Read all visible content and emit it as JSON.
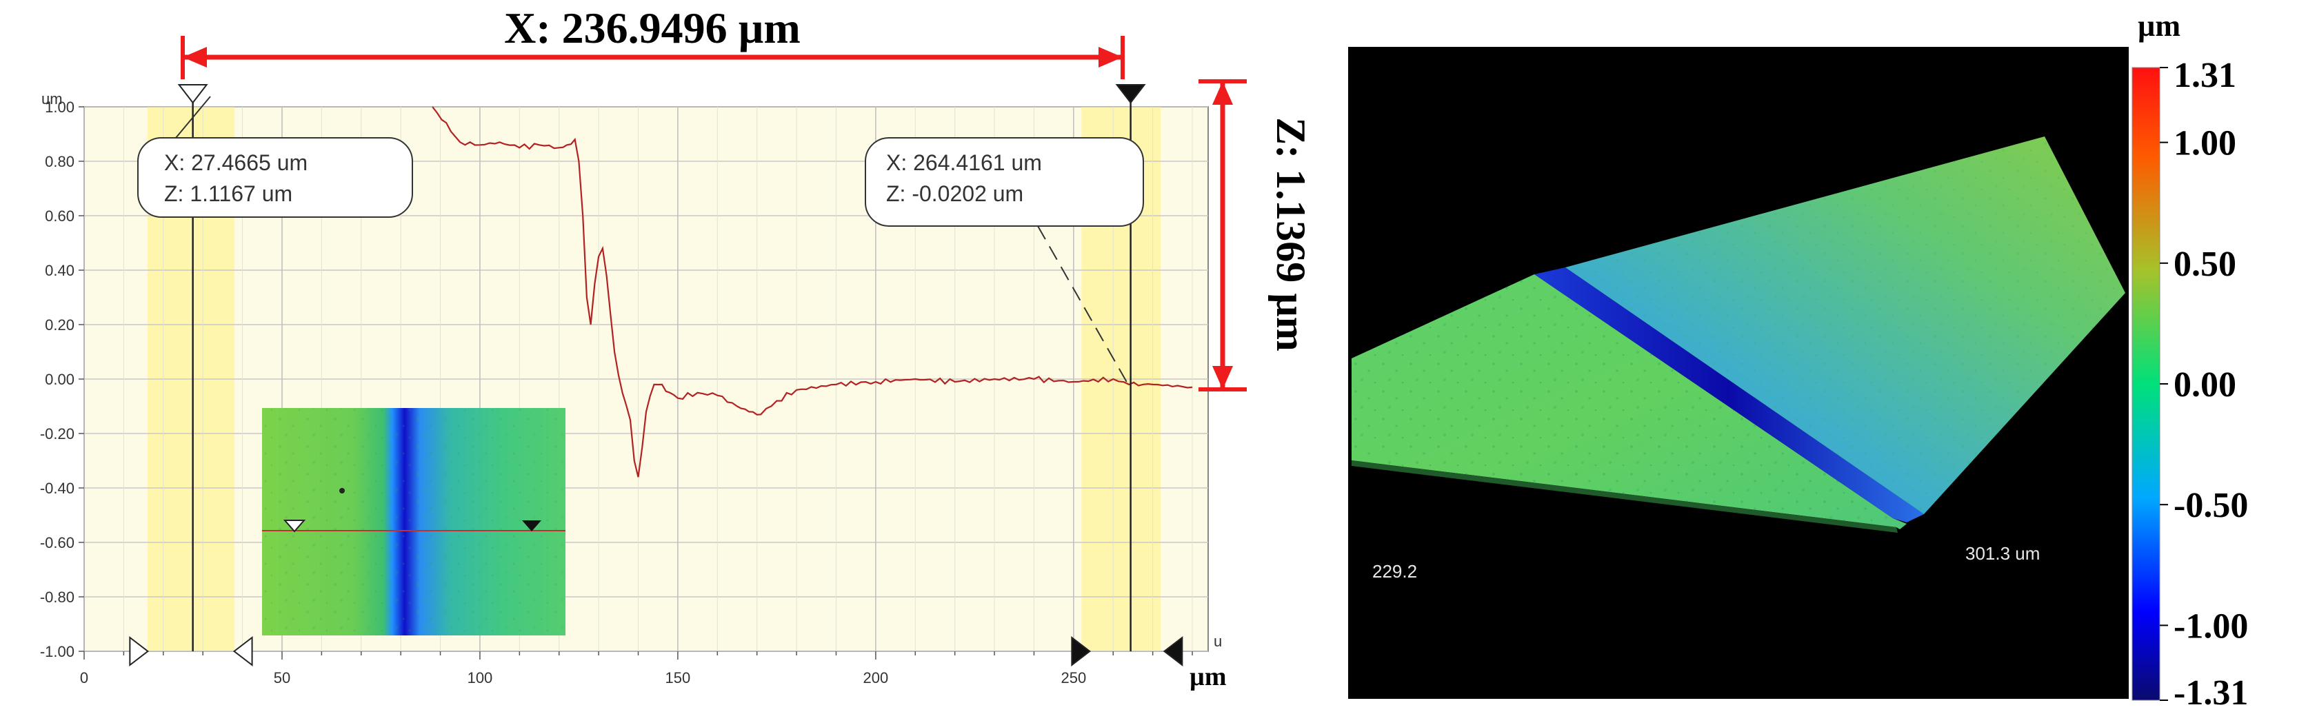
{
  "chart_data": [
    {
      "type": "line",
      "unit_top": "um",
      "unit_right": "u",
      "unit_bottom": "µm",
      "xlim": [
        0,
        284
      ],
      "ylim": [
        -1.0,
        1.0
      ],
      "yticks": [
        1.0,
        0.8,
        0.6,
        0.4,
        0.2,
        0.0,
        -0.2,
        -0.4,
        -0.6,
        -0.8,
        -1.0
      ],
      "ytick_labels": [
        "1.00",
        "0.80",
        "0.60",
        "0.40",
        "0.20",
        "0.00",
        "-0.20",
        "-0.40",
        "-0.60",
        "-0.80",
        "-1.00"
      ],
      "xticks": [
        0,
        50,
        100,
        150,
        200,
        250
      ],
      "xtick_labels": [
        "0",
        "50",
        "100",
        "150",
        "200",
        "250"
      ],
      "grid": true,
      "series": [
        {
          "color": "#b22222",
          "x": [
            88,
            95,
            100,
            105,
            110,
            115,
            120,
            122,
            124,
            125,
            126,
            127,
            128,
            129,
            130,
            131,
            132,
            134,
            136,
            138,
            139,
            140,
            141,
            142,
            144,
            146,
            148,
            150,
            155,
            160,
            165,
            168,
            171,
            175,
            180,
            190,
            200,
            210,
            220,
            230,
            240,
            250,
            260,
            264,
            270,
            280
          ],
          "y": [
            1.0,
            0.87,
            0.86,
            0.87,
            0.85,
            0.86,
            0.85,
            0.86,
            0.88,
            0.8,
            0.6,
            0.3,
            0.2,
            0.35,
            0.45,
            0.48,
            0.38,
            0.1,
            -0.05,
            -0.15,
            -0.3,
            -0.36,
            -0.25,
            -0.12,
            -0.02,
            -0.02,
            -0.05,
            -0.07,
            -0.05,
            -0.06,
            -0.1,
            -0.12,
            -0.13,
            -0.08,
            -0.04,
            -0.02,
            -0.01,
            0.0,
            -0.01,
            0.0,
            0.0,
            -0.01,
            0.0,
            -0.02,
            -0.02,
            -0.03
          ]
        }
      ],
      "cursor_left": {
        "x": 27.4665,
        "label_x": "X: 27.4665 um",
        "label_z": "Z: 1.1167 um"
      },
      "cursor_right": {
        "x": 264.4161,
        "label_x": "X: 264.4161 um",
        "label_z": "Z: -0.0202 um"
      },
      "highlight_bands": [
        [
          16,
          38
        ],
        [
          252,
          272
        ]
      ],
      "range_markers": [
        14,
        40,
        252,
        275
      ],
      "annotation_x": "X: 236.9496 µm",
      "annotation_z": "Z: 1.1369 µm"
    },
    {
      "type": "heatmap",
      "view": "3d-surface",
      "axis_label_left": "229.2",
      "axis_label_right": "301.3 um",
      "colorbar_unit": "µm",
      "colorbar_tick_labels": [
        "1.31",
        "1.00",
        "0.50",
        "0.00",
        "-0.50",
        "-1.00",
        "-1.31"
      ],
      "colorbar_ticks": [
        1.31,
        1.0,
        0.5,
        0.0,
        -0.5,
        -1.0,
        -1.31
      ],
      "colorbar_range": [
        -1.31,
        1.31
      ],
      "colors": [
        "#0a0a6e",
        "#0000ff",
        "#00a8ff",
        "#00e07a",
        "#8ccc33",
        "#ff8c00",
        "#ff1010"
      ]
    }
  ]
}
